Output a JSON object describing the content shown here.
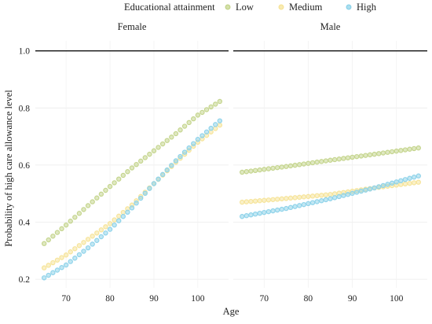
{
  "chart_data": {
    "type": "scatter",
    "legend": {
      "title": "Educational attainment",
      "placement": "top",
      "entries": [
        {
          "name": "Low",
          "color": "#c5d58e"
        },
        {
          "name": "Medium",
          "color": "#f6e49a"
        },
        {
          "name": "High",
          "color": "#8fd3ea"
        }
      ]
    },
    "xlabel": "Age",
    "ylabel": "Probability of high care allowance level",
    "xlim": [
      63,
      107
    ],
    "ylim": [
      0.17,
      1.035
    ],
    "x_ticks": [
      70,
      80,
      90,
      100
    ],
    "x_tick_labels": [
      "70",
      "80",
      "90",
      "100"
    ],
    "y_ticks": [
      0.2,
      0.4,
      0.6,
      0.8,
      1.0
    ],
    "y_tick_labels": [
      "0.2",
      "0.4",
      "0.6",
      "0.8",
      "1.0"
    ],
    "reference_line": {
      "y": 1.0
    },
    "grid": true,
    "x_start": 65,
    "x_end": 105,
    "x_step": 1,
    "facets": [
      {
        "label": "Female",
        "series": [
          {
            "name": "Low",
            "color": "#c5d58e",
            "anchors": [
              [
                65,
                0.325
              ],
              [
                70,
                0.39
              ],
              [
                75,
                0.458
              ],
              [
                80,
                0.525
              ],
              [
                85,
                0.59
              ],
              [
                90,
                0.65
              ],
              [
                95,
                0.71
              ],
              [
                100,
                0.775
              ],
              [
                105,
                0.823
              ]
            ]
          },
          {
            "name": "Medium",
            "color": "#f6e49a",
            "anchors": [
              [
                65,
                0.24
              ],
              [
                70,
                0.285
              ],
              [
                75,
                0.34
              ],
              [
                80,
                0.395
              ],
              [
                85,
                0.46
              ],
              [
                90,
                0.535
              ],
              [
                95,
                0.61
              ],
              [
                100,
                0.68
              ],
              [
                105,
                0.74
              ]
            ]
          },
          {
            "name": "High",
            "color": "#8fd3ea",
            "anchors": [
              [
                65,
                0.205
              ],
              [
                70,
                0.25
              ],
              [
                75,
                0.31
              ],
              [
                80,
                0.375
              ],
              [
                85,
                0.45
              ],
              [
                90,
                0.535
              ],
              [
                95,
                0.615
              ],
              [
                100,
                0.69
              ],
              [
                105,
                0.755
              ]
            ]
          }
        ]
      },
      {
        "label": "Male",
        "series": [
          {
            "name": "Low",
            "color": "#c5d58e",
            "anchors": [
              [
                65,
                0.575
              ],
              [
                75,
                0.595
              ],
              [
                85,
                0.617
              ],
              [
                95,
                0.638
              ],
              [
                105,
                0.66
              ]
            ]
          },
          {
            "name": "Medium",
            "color": "#f6e49a",
            "anchors": [
              [
                65,
                0.47
              ],
              [
                75,
                0.483
              ],
              [
                85,
                0.497
              ],
              [
                95,
                0.52
              ],
              [
                105,
                0.54
              ]
            ]
          },
          {
            "name": "High",
            "color": "#8fd3ea",
            "anchors": [
              [
                65,
                0.42
              ],
              [
                75,
                0.448
              ],
              [
                85,
                0.482
              ],
              [
                95,
                0.52
              ],
              [
                105,
                0.562
              ]
            ]
          }
        ]
      }
    ]
  }
}
